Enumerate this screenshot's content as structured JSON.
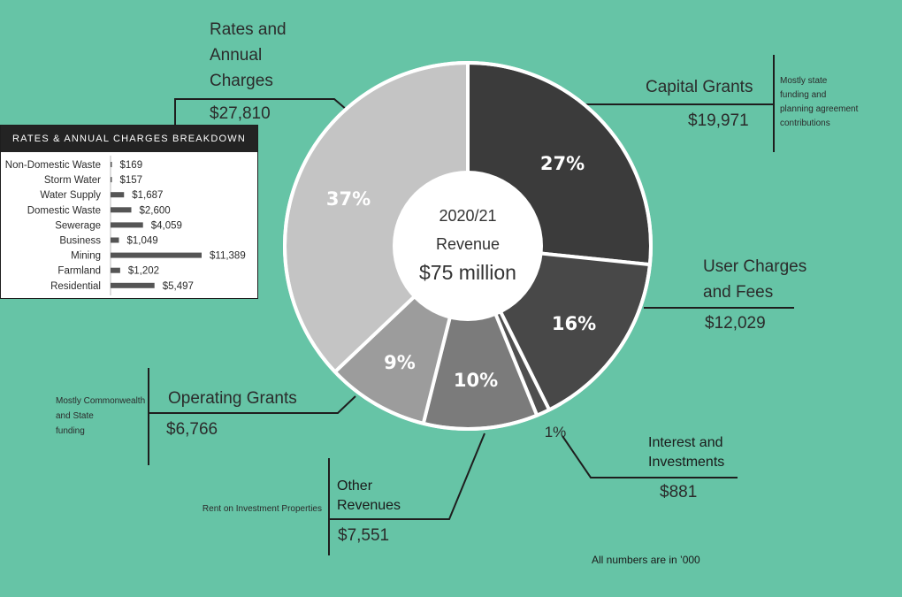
{
  "chart_data": [
    {
      "type": "pie",
      "center": {
        "year": "2020/21",
        "label": "Revenue",
        "total": "$75 million"
      },
      "slices": [
        {
          "key": "capital_grants",
          "name": "Capital Grants",
          "value": 19971,
          "value_label": "$19,971",
          "percent": "27%",
          "color": "#3b3b3b",
          "note": "Mostly state funding and planning agreement contributions"
        },
        {
          "key": "user_charges",
          "name": "User Charges and Fees",
          "value": 12029,
          "value_label": "$12,029",
          "percent": "16%",
          "color": "#484848",
          "note": ""
        },
        {
          "key": "interest",
          "name": "Interest and Investments",
          "value": 881,
          "value_label": "$881",
          "percent": "1%",
          "color": "#4f4f4f",
          "note": ""
        },
        {
          "key": "other",
          "name": "Other Revenues",
          "value": 7551,
          "value_label": "$7,551",
          "percent": "10%",
          "color": "#7b7b7b",
          "note": "Rent on Investment Properties"
        },
        {
          "key": "operating_grants",
          "name": "Operating Grants",
          "value": 6766,
          "value_label": "$6,766",
          "percent": "9%",
          "color": "#9c9c9c",
          "note": "Mostly Commonwealth and State funding"
        },
        {
          "key": "rates",
          "name": "Rates and Annual Charges",
          "value": 27810,
          "value_label": "$27,810",
          "percent": "37%",
          "color": "#c4c4c4",
          "note": ""
        }
      ]
    },
    {
      "type": "bar",
      "orientation": "horizontal",
      "title": "RATES & ANNUAL CHARGES BREAKDOWN",
      "categories": [
        "Non-Domestic Waste",
        "Storm Water",
        "Water Supply",
        "Domestic Waste",
        "Sewerage",
        "Business",
        "Mining",
        "Farmland",
        "Residential"
      ],
      "values": [
        169,
        157,
        1687,
        2600,
        4059,
        1049,
        11389,
        1202,
        5497
      ],
      "value_labels": [
        "$169",
        "$157",
        "$1,687",
        "$2,600",
        "$4,059",
        "$1,049",
        "$11,389",
        "$1,202",
        "$5,497"
      ],
      "bar_color": "#555555"
    }
  ],
  "labels": {
    "rates_title": [
      "Rates and",
      "Annual",
      "Charges"
    ],
    "capital_title": "Capital Grants",
    "capital_note": [
      "Mostly state",
      "funding and",
      "planning agreement",
      "contributions"
    ],
    "user_title": [
      "User Charges",
      "and Fees"
    ],
    "interest_title": [
      "Interest and",
      "Investments"
    ],
    "other_title": [
      "Other",
      "Revenues"
    ],
    "other_note": "Rent on Investment Properties",
    "operating_title": "Operating Grants",
    "operating_note": [
      "Mostly Commonwealth",
      "and State",
      "funding"
    ]
  },
  "footnote": "All numbers are in ’000"
}
